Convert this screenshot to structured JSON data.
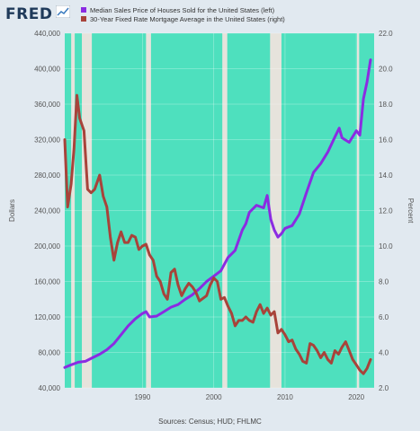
{
  "header": {
    "logo_text": "FRED",
    "logo_icon": "line-chart-icon"
  },
  "legend": [
    {
      "label": "Median Sales Price of Houses Sold for the United States (left)",
      "color": "#8b2be2"
    },
    {
      "label": "30-Year Fixed Rate Mortgage Average in the United States (right)",
      "color": "#a8433a"
    }
  ],
  "colors": {
    "recession": "#e6e3dc",
    "plot_bg": "#4ee0be",
    "house": "#8b2be2",
    "mortgage": "#a8433a"
  },
  "source": "Sources: Census; HUD; FHLMC",
  "chart_data": {
    "type": "line",
    "xlabel": "",
    "ylabel_left": "Dollars",
    "ylabel_right": "Percent",
    "x_ticks": [
      "1990",
      "2000",
      "2010",
      "2020"
    ],
    "x_tick_years": [
      1990,
      2000,
      2010,
      2020
    ],
    "xlim": [
      1979.1,
      2022.5
    ],
    "ylim_left": [
      40000,
      440000
    ],
    "ylim_right": [
      2.0,
      22.0
    ],
    "y_ticks_left": [
      "40,000",
      "80,000",
      "120,000",
      "160,000",
      "200,000",
      "240,000",
      "280,000",
      "320,000",
      "360,000",
      "400,000",
      "440,000"
    ],
    "y_ticks_right": [
      "2.0",
      "4.0",
      "6.0",
      "8.0",
      "10.0",
      "12.0",
      "14.0",
      "16.0",
      "18.0",
      "20.0",
      "22.0"
    ],
    "grid": true,
    "recessions": [
      [
        1980.0,
        1980.5
      ],
      [
        1981.5,
        1982.9
      ],
      [
        1990.5,
        1991.2
      ],
      [
        2001.2,
        2001.9
      ],
      [
        2007.9,
        2009.5
      ],
      [
        2020.1,
        2020.4
      ]
    ],
    "series": [
      {
        "name": "Median Sales Price of Houses Sold for the United States (left)",
        "axis": "left",
        "x": [
          1979.1,
          1980.0,
          1981.0,
          1982.0,
          1983.0,
          1984.0,
          1985.0,
          1986.0,
          1987.0,
          1988.0,
          1989.0,
          1990.0,
          1990.5,
          1991.0,
          1992.0,
          1993.0,
          1994.0,
          1995.0,
          1996.0,
          1997.0,
          1998.0,
          1999.0,
          2000.0,
          2001.0,
          2002.0,
          2003.0,
          2004.0,
          2004.5,
          2005.0,
          2006.0,
          2007.0,
          2007.5,
          2008.0,
          2008.5,
          2009.0,
          2009.5,
          2010.0,
          2011.0,
          2012.0,
          2013.0,
          2014.0,
          2015.0,
          2016.0,
          2017.0,
          2017.6,
          2018.0,
          2019.0,
          2020.0,
          2020.5,
          2021.0,
          2021.5,
          2022.0
        ],
        "values": [
          63000,
          66000,
          69000,
          70000,
          74000,
          78000,
          83000,
          90000,
          100000,
          110000,
          118000,
          124000,
          126000,
          120000,
          121000,
          126000,
          131000,
          134000,
          140000,
          145000,
          152000,
          160000,
          166000,
          172000,
          187000,
          195000,
          218000,
          225000,
          238000,
          246000,
          243000,
          257000,
          230000,
          218000,
          210000,
          214000,
          220000,
          223000,
          236000,
          260000,
          283000,
          293000,
          306000,
          323000,
          333000,
          322000,
          317000,
          330000,
          325000,
          366000,
          385000,
          410000
        ]
      },
      {
        "name": "30-Year Fixed Rate Mortgage Average in the United States (right)",
        "axis": "right",
        "x": [
          1979.1,
          1979.5,
          1980.0,
          1980.4,
          1980.8,
          1981.2,
          1981.8,
          1982.3,
          1982.8,
          1983.3,
          1984.0,
          1984.5,
          1985.0,
          1985.5,
          1986.0,
          1986.5,
          1987.0,
          1987.5,
          1988.0,
          1988.5,
          1989.0,
          1989.5,
          1990.0,
          1990.5,
          1991.0,
          1991.5,
          1992.0,
          1992.5,
          1993.0,
          1993.5,
          1994.0,
          1994.5,
          1995.0,
          1995.5,
          1996.0,
          1996.5,
          1997.0,
          1997.5,
          1998.0,
          1999.0,
          1999.5,
          2000.0,
          2000.5,
          2001.0,
          2001.5,
          2002.0,
          2002.5,
          2003.0,
          2003.5,
          2004.0,
          2004.5,
          2005.0,
          2005.5,
          2006.0,
          2006.5,
          2007.0,
          2007.5,
          2008.0,
          2008.5,
          2009.0,
          2009.5,
          2010.0,
          2010.5,
          2011.0,
          2011.5,
          2012.0,
          2012.5,
          2013.0,
          2013.5,
          2014.0,
          2014.5,
          2015.0,
          2015.5,
          2016.0,
          2016.5,
          2017.0,
          2017.5,
          2018.0,
          2018.5,
          2019.0,
          2019.5,
          2020.0,
          2020.5,
          2021.0,
          2021.5,
          2022.0
        ],
        "values": [
          16.0,
          12.2,
          13.5,
          15.5,
          18.5,
          17.2,
          16.5,
          13.2,
          13.0,
          13.2,
          14.0,
          12.8,
          12.2,
          10.5,
          9.2,
          10.2,
          10.8,
          10.2,
          10.2,
          10.6,
          10.5,
          9.8,
          10.0,
          10.1,
          9.5,
          9.2,
          8.3,
          8.0,
          7.3,
          7.0,
          8.5,
          8.7,
          7.8,
          7.2,
          7.6,
          7.9,
          7.7,
          7.4,
          6.9,
          7.2,
          7.8,
          8.2,
          8.0,
          7.0,
          7.1,
          6.6,
          6.2,
          5.5,
          5.8,
          5.8,
          6.0,
          5.8,
          5.7,
          6.3,
          6.7,
          6.2,
          6.5,
          6.1,
          6.3,
          5.1,
          5.3,
          5.0,
          4.6,
          4.7,
          4.2,
          3.9,
          3.5,
          3.4,
          4.5,
          4.4,
          4.1,
          3.7,
          4.0,
          3.6,
          3.4,
          4.1,
          3.9,
          4.3,
          4.6,
          4.1,
          3.6,
          3.3,
          3.0,
          2.8,
          3.1,
          3.6
        ]
      }
    ]
  }
}
